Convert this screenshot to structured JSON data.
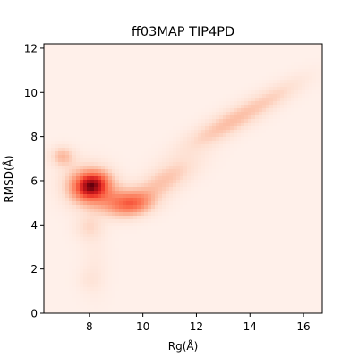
{
  "chart_data": {
    "type": "heatmap",
    "subtype": "2d-kde-density",
    "title": "ff03MAP TIP4PD",
    "xlabel": "Rg(Å)",
    "ylabel": "RMSD(Å)",
    "xlim": [
      6.3,
      16.7
    ],
    "ylim": [
      0,
      12.2
    ],
    "xticks": [
      8,
      10,
      12,
      14,
      16
    ],
    "yticks": [
      0,
      2,
      4,
      6,
      8,
      10,
      12
    ],
    "grid": false,
    "colormap": "Reds",
    "colors": {
      "background_low": "#fff0ea",
      "high": "#67000d"
    },
    "density_blobs": [
      {
        "x": 8.1,
        "y": 5.8,
        "sx": 0.45,
        "sy": 0.42,
        "rho": 0.2,
        "w": 1.0
      },
      {
        "x": 7.8,
        "y": 6.0,
        "sx": 0.55,
        "sy": 0.55,
        "rho": 0.0,
        "w": 0.35
      },
      {
        "x": 7.0,
        "y": 7.1,
        "sx": 0.3,
        "sy": 0.3,
        "rho": 0.0,
        "w": 0.35
      },
      {
        "x": 8.6,
        "y": 5.2,
        "sx": 0.7,
        "sy": 0.45,
        "rho": 0.0,
        "w": 0.45
      },
      {
        "x": 9.6,
        "y": 4.95,
        "sx": 0.55,
        "sy": 0.38,
        "rho": 0.2,
        "w": 0.62
      },
      {
        "x": 10.8,
        "y": 6.0,
        "sx": 0.8,
        "sy": 0.7,
        "rho": 0.7,
        "w": 0.3
      },
      {
        "x": 13.2,
        "y": 8.6,
        "sx": 1.1,
        "sy": 0.8,
        "rho": 0.85,
        "w": 0.32
      },
      {
        "x": 15.0,
        "y": 9.9,
        "sx": 0.8,
        "sy": 0.6,
        "rho": 0.8,
        "w": 0.14
      },
      {
        "x": 8.0,
        "y": 3.9,
        "sx": 0.35,
        "sy": 0.4,
        "rho": 0.0,
        "w": 0.18
      },
      {
        "x": 8.2,
        "y": 2.2,
        "sx": 0.35,
        "sy": 1.0,
        "rho": 0.0,
        "w": 0.06
      },
      {
        "x": 8.0,
        "y": 1.5,
        "sx": 0.3,
        "sy": 0.35,
        "rho": 0.0,
        "w": 0.07
      }
    ]
  }
}
